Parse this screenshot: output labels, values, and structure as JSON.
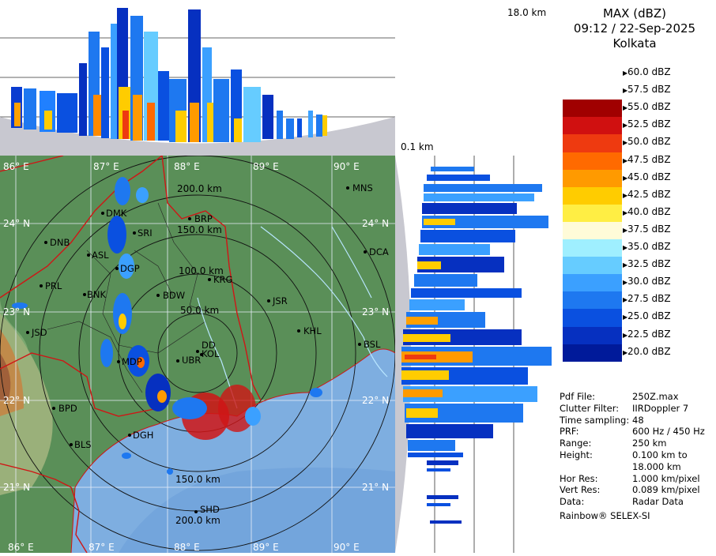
{
  "header": {
    "product": "MAX (dBZ)",
    "datetime": "09:12 / 22-Sep-2025",
    "station": "Kolkata"
  },
  "top_panel": {
    "height_top_label": "18.0 km",
    "height_bottom_label": "0.1 km"
  },
  "legend": {
    "entries": [
      {
        "label": "60.0 dBZ",
        "color": "#ffffff"
      },
      {
        "label": "57.5 dBZ",
        "color": "#ffffff"
      },
      {
        "label": "55.0 dBZ",
        "color": "#a00000"
      },
      {
        "label": "52.5 dBZ",
        "color": "#d01010"
      },
      {
        "label": "50.0 dBZ",
        "color": "#ee3a10"
      },
      {
        "label": "47.5 dBZ",
        "color": "#ff6a00"
      },
      {
        "label": "45.0 dBZ",
        "color": "#ff9a00"
      },
      {
        "label": "42.5 dBZ",
        "color": "#ffcc00"
      },
      {
        "label": "40.0 dBZ",
        "color": "#ffee44"
      },
      {
        "label": "37.5 dBZ",
        "color": "#fffbd8"
      },
      {
        "label": "35.0 dBZ",
        "color": "#9fefff"
      },
      {
        "label": "32.5 dBZ",
        "color": "#66ccff"
      },
      {
        "label": "30.0 dBZ",
        "color": "#3ba0ff"
      },
      {
        "label": "27.5 dBZ",
        "color": "#1e78f0"
      },
      {
        "label": "25.0 dBZ",
        "color": "#0a50e0"
      },
      {
        "label": "22.5 dBZ",
        "color": "#0630c0"
      },
      {
        "label": "20.0 dBZ",
        "color": "#001a9a"
      }
    ]
  },
  "metadata": [
    {
      "key": "Pdf File:",
      "value": "250Z.max"
    },
    {
      "key": "Clutter Filter:",
      "value": "IIRDoppler 7"
    },
    {
      "key": "Time sampling:",
      "value": "48"
    },
    {
      "key": "PRF:",
      "value": "600 Hz / 450 Hz"
    },
    {
      "key": "Range:",
      "value": "250 km"
    },
    {
      "key": "Height:",
      "value": "0.100 km to"
    },
    {
      "key": "",
      "value": "18.000 km"
    },
    {
      "key": "Hor Res:",
      "value": "1.000 km/pixel"
    },
    {
      "key": "Vert Res:",
      "value": "0.089 km/pixel"
    },
    {
      "key": "Data:",
      "value": "Radar Data"
    }
  ],
  "footer": "Rainbow® SELEX-SI",
  "map": {
    "range_rings": [
      "50.0 km",
      "100.0 km",
      "150.0 km",
      "200.0 km",
      "150.0 km",
      "200.0 km"
    ],
    "lon_labels_top": [
      "86° E",
      "87° E",
      "88° E",
      "89° E",
      "90° E"
    ],
    "lon_labels_bottom": [
      "86° E",
      "87° E",
      "88° E",
      "89° E",
      "90° E"
    ],
    "lat_labels_left": [
      "24° N",
      "23° N",
      "22° N",
      "21° N"
    ],
    "lat_labels_right": [
      "24° N",
      "23° N",
      "22° N",
      "21° N"
    ],
    "cities": [
      "MNS",
      "DMK",
      "BRP",
      "SRI",
      "DNB",
      "ASL",
      "DCA",
      "DGP",
      "KRG",
      "PRL",
      "BNK",
      "BDW",
      "JSR",
      "KHL",
      "JSD",
      "BSL",
      "KOL",
      "MDP",
      "UBR",
      "DD",
      "BPD",
      "DGH",
      "BLS",
      "SHD"
    ]
  }
}
